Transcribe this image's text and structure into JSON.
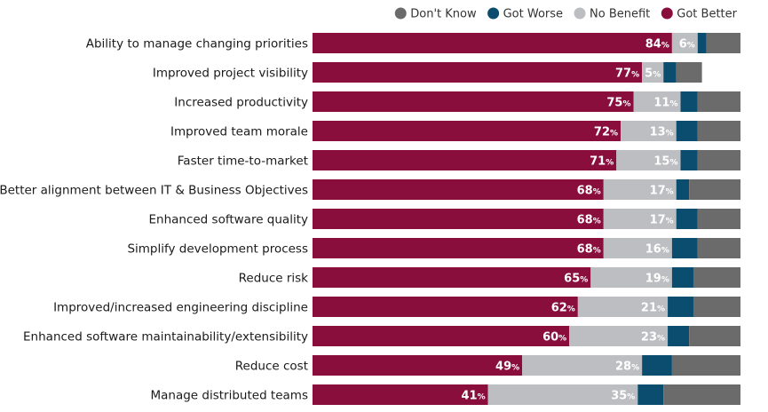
{
  "chart_data": {
    "type": "bar",
    "orientation": "horizontal",
    "stacked": true,
    "value_format": "{v}%",
    "legend_position": "top-right",
    "legend_order": [
      "Don't Know",
      "Got Worse",
      "No Benefit",
      "Got Better"
    ],
    "xlim": [
      0,
      100
    ],
    "categories": [
      "Ability to manage changing priorities",
      "Improved project visibility",
      "Increased productivity",
      "Improved team morale",
      "Faster time-to-market",
      "Better alignment between IT & Business Objectives",
      "Enhanced software quality",
      "Simplify development process",
      "Reduce risk",
      "Improved/increased engineering discipline",
      "Enhanced software maintainability/extensibility",
      "Reduce cost",
      "Manage distributed teams"
    ],
    "series": [
      {
        "name": "Got Better",
        "color": "#8a0e3c",
        "label_color": "#ffffff",
        "values": [
          84,
          77,
          75,
          72,
          71,
          68,
          68,
          68,
          65,
          62,
          60,
          49,
          41
        ]
      },
      {
        "name": "No Benefit",
        "color": "#bdbec1",
        "label_color": "#ffffff",
        "values": [
          6,
          5,
          11,
          13,
          15,
          17,
          17,
          16,
          19,
          21,
          23,
          28,
          35
        ]
      },
      {
        "name": "Got Worse",
        "color": "#0b4d6e",
        "label_color": "#ffffff",
        "values": [
          2,
          3,
          4,
          5,
          4,
          3,
          5,
          6,
          5,
          6,
          5,
          7,
          6
        ]
      },
      {
        "name": "Don't Know",
        "color": "#6b6b6b",
        "label_color": "#ffffff",
        "values": [
          8,
          6,
          10,
          10,
          10,
          12,
          10,
          10,
          11,
          11,
          12,
          16,
          18
        ]
      }
    ],
    "labeled_series": [
      "Got Better",
      "No Benefit"
    ]
  }
}
